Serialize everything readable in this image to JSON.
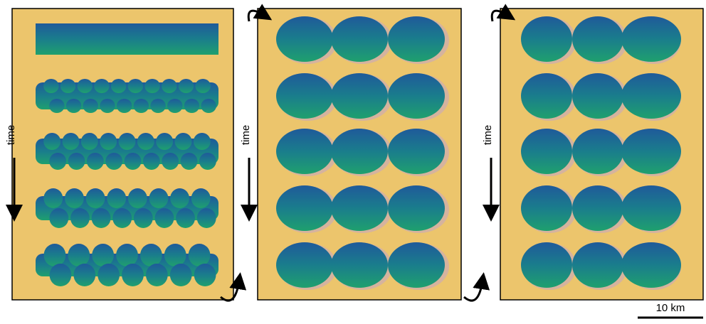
{
  "panels": [
    {
      "time_label": "time"
    },
    {
      "time_label": "time"
    },
    {
      "time_label": "time"
    }
  ],
  "scale_bar": {
    "label": "10 km"
  }
}
